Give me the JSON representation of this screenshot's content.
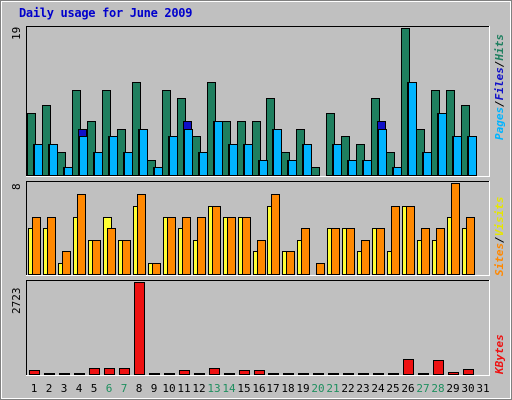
{
  "title": "Daily usage for June 2009",
  "colors": {
    "background": "#c0c0c0",
    "plot": "#c0c0c0",
    "title": "#0000cc",
    "weekday": "#000000",
    "weekend": "#1f8f5f",
    "hits": "#1f7f5f",
    "files": "#1010c8",
    "pages": "#00b4ff",
    "visits": "#ffff33",
    "sites": "#ff8800",
    "kbytes": "#ee1111"
  },
  "legend": {
    "pages": "Pages",
    "files": "Files",
    "hits": "Hits",
    "sites": "Sites",
    "visits": "Visits",
    "kbytes": "KBytes",
    "sep": "/"
  },
  "chart_data": {
    "type": "bar",
    "title": "Daily usage for June 2009",
    "days": [
      "1",
      "2",
      "3",
      "4",
      "5",
      "6",
      "7",
      "8",
      "9",
      "10",
      "11",
      "12",
      "13",
      "14",
      "15",
      "16",
      "17",
      "18",
      "19",
      "20",
      "21",
      "22",
      "23",
      "24",
      "25",
      "26",
      "27",
      "28",
      "29",
      "30",
      "31"
    ],
    "weekend_days": [
      "6",
      "7",
      "13",
      "14",
      "20",
      "21",
      "27",
      "28"
    ],
    "panels": [
      {
        "name": "hits-files-pages",
        "ymax": "19",
        "ymax_value": 19,
        "series": [
          {
            "name": "Hits",
            "values": [
              8,
              9,
              3,
              11,
              7,
              11,
              6,
              12,
              2,
              11,
              10,
              5,
              12,
              7,
              7,
              7,
              10,
              3,
              6,
              1,
              8,
              5,
              4,
              10,
              3,
              19,
              6,
              11,
              11,
              9,
              0
            ]
          },
          {
            "name": "Files",
            "values": [
              4,
              4,
              1,
              6,
              3,
              5,
              3,
              6,
              1,
              5,
              7,
              3,
              7,
              4,
              4,
              2,
              6,
              2,
              4,
              0,
              4,
              2,
              2,
              7,
              1,
              12,
              3,
              8,
              5,
              5,
              0
            ]
          },
          {
            "name": "Pages",
            "values": [
              4,
              4,
              1,
              5,
              3,
              5,
              3,
              6,
              1,
              5,
              6,
              3,
              7,
              4,
              4,
              2,
              6,
              2,
              4,
              0,
              4,
              2,
              2,
              6,
              1,
              12,
              3,
              8,
              5,
              5,
              0
            ]
          }
        ]
      },
      {
        "name": "visits-sites",
        "ymax": "8",
        "ymax_value": 8,
        "series": [
          {
            "name": "Visits",
            "values": [
              4,
              4,
              1,
              5,
              3,
              5,
              3,
              6,
              1,
              5,
              4,
              3,
              6,
              5,
              5,
              2,
              6,
              2,
              3,
              0,
              4,
              4,
              2,
              4,
              2,
              6,
              3,
              3,
              5,
              4,
              0
            ]
          },
          {
            "name": "Sites",
            "values": [
              5,
              5,
              2,
              7,
              3,
              4,
              3,
              7,
              1,
              5,
              5,
              5,
              6,
              5,
              5,
              3,
              7,
              2,
              4,
              1,
              4,
              4,
              3,
              4,
              6,
              6,
              4,
              4,
              8,
              5,
              0
            ]
          }
        ]
      },
      {
        "name": "kbytes",
        "ymax": "2723",
        "ymax_value": 2723,
        "series": [
          {
            "name": "KBytes",
            "values": [
              110,
              20,
              20,
              20,
              190,
              190,
              190,
              2723,
              20,
              20,
              110,
              20,
              190,
              20,
              110,
              110,
              20,
              20,
              20,
              20,
              20,
              20,
              20,
              20,
              20,
              430,
              20,
              400,
              70,
              160,
              0
            ]
          }
        ]
      }
    ]
  }
}
